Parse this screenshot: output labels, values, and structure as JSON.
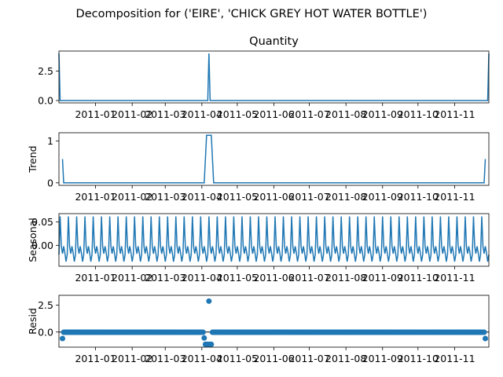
{
  "figure": {
    "suptitle": "Decomposition for ('EIRE', 'CHICK GREY HOT WATER BOTTLE')"
  },
  "colors": {
    "line": "#1f77b4",
    "marker": "#1f77b4",
    "zero_line": "#000000"
  },
  "x_tick_labels": [
    "2011-01",
    "2011-02",
    "2011-03",
    "2011-04",
    "2011-05",
    "2011-06",
    "2011-07",
    "2011-08",
    "2011-09",
    "2011-10",
    "2011-11"
  ],
  "chart_data": [
    {
      "type": "line",
      "panel": "observed",
      "title": "Quantity",
      "ylabel": "",
      "x_range": [
        "2010-12-01",
        "2011-11-30"
      ],
      "ylim": [
        -0.2,
        4.2
      ],
      "yticks": [
        0.0,
        2.5
      ],
      "ytick_labels": [
        "0.0",
        "2.5"
      ],
      "spikes": [
        {
          "x": "2010-12-01",
          "y": 4
        },
        {
          "x": "2011-04-07",
          "y": 4
        },
        {
          "x": "2011-11-30",
          "y": 4
        }
      ],
      "baseline": 0
    },
    {
      "type": "line",
      "panel": "trend",
      "title": "",
      "ylabel": "Trend",
      "x_range": [
        "2010-12-01",
        "2011-11-30"
      ],
      "ylim": [
        -0.06,
        1.2
      ],
      "yticks": [
        0,
        1
      ],
      "ytick_labels": [
        "0",
        "1"
      ],
      "points": [
        {
          "x": "2010-12-04",
          "y": 0.57
        },
        {
          "x": "2010-12-05",
          "y": 0
        },
        {
          "x": "2011-04-03",
          "y": 0
        },
        {
          "x": "2011-04-05",
          "y": 1.14
        },
        {
          "x": "2011-04-09",
          "y": 1.14
        },
        {
          "x": "2011-04-11",
          "y": 0
        },
        {
          "x": "2011-11-26",
          "y": 0
        },
        {
          "x": "2011-11-27",
          "y": 0.57
        }
      ]
    },
    {
      "type": "line",
      "panel": "seasonal",
      "title": "",
      "ylabel": "Seasonal",
      "x_range": [
        "2010-12-01",
        "2011-11-30"
      ],
      "ylim": [
        -0.045,
        0.068
      ],
      "yticks": [
        0.0,
        0.05
      ],
      "ytick_labels": [
        "0.00",
        "0.05"
      ],
      "period_days": 7,
      "weekly_pattern": [
        -0.02,
        0.062,
        -0.002,
        -0.018,
        -0.002,
        -0.016,
        -0.035
      ]
    },
    {
      "type": "scatter",
      "panel": "resid",
      "title": "",
      "ylabel": "Resid",
      "x_range": [
        "2010-12-01",
        "2011-11-30"
      ],
      "ylim": [
        -1.4,
        3.4
      ],
      "yticks": [
        0.0,
        2.5
      ],
      "ytick_labels": [
        "0.0",
        "2.5"
      ],
      "zero_line": true,
      "resid_default": -0.02,
      "special_points": [
        {
          "x": "2010-12-04",
          "y": -0.6
        },
        {
          "x": "2011-04-03",
          "y": -0.55
        },
        {
          "x": "2011-04-04",
          "y": -1.14
        },
        {
          "x": "2011-04-05",
          "y": -1.14
        },
        {
          "x": "2011-04-06",
          "y": -1.14
        },
        {
          "x": "2011-04-07",
          "y": 2.86
        },
        {
          "x": "2011-04-08",
          "y": -1.14
        },
        {
          "x": "2011-04-09",
          "y": -1.14
        },
        {
          "x": "2011-11-27",
          "y": -0.6
        }
      ]
    }
  ]
}
